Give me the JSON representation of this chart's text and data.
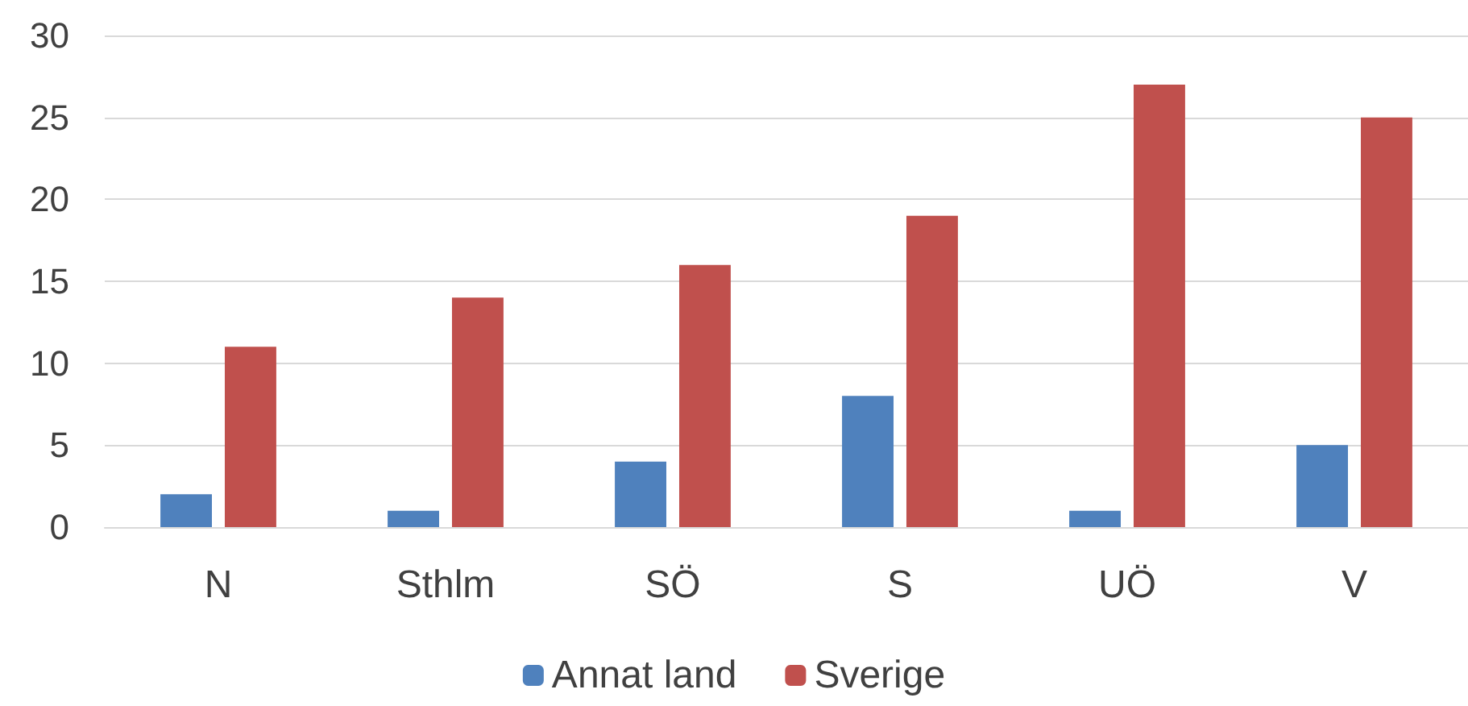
{
  "chart_data": {
    "type": "bar",
    "categories": [
      "N",
      "Sthlm",
      "SÖ",
      "S",
      "UÖ",
      "V"
    ],
    "series": [
      {
        "name": "Annat land",
        "color": "#4f81bd",
        "values": [
          2,
          1,
          4,
          8,
          1,
          5
        ]
      },
      {
        "name": "Sverige",
        "color": "#c0504d",
        "values": [
          11,
          14,
          16,
          19,
          27,
          25
        ]
      }
    ],
    "ylim": [
      0,
      30
    ],
    "yticks": [
      0,
      5,
      10,
      15,
      20,
      25,
      30
    ],
    "grid": "y",
    "legend": "bottom"
  }
}
